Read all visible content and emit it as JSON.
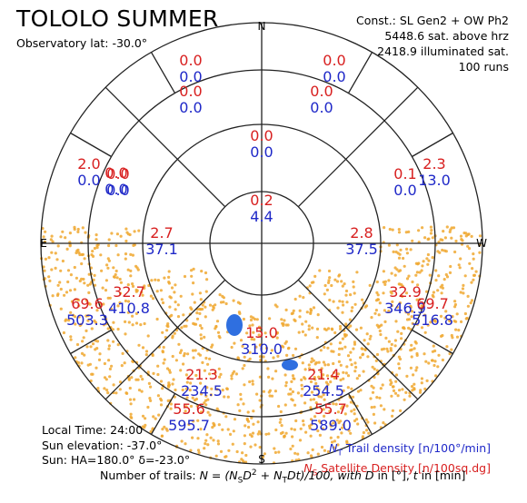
{
  "header": {
    "title": "TOLOLO SUMMER",
    "latitude": "Observatory lat: -30.0°"
  },
  "constellation": {
    "line1": "Const.: SL Gen2 + OW Ph2",
    "line2": "5448.6 sat. above hrz",
    "line3": "2418.9 illuminated sat.",
    "line4": "100 runs"
  },
  "cardinals": {
    "north": "N",
    "south": "S",
    "east": "E",
    "west": "W"
  },
  "sectors": [
    {
      "id": "zenith",
      "ns": "0.2",
      "nt": "4.4"
    },
    {
      "id": "r2-n",
      "ns": "0.0",
      "nt": "0.0"
    },
    {
      "id": "r2-nw",
      "ns": "0.1",
      "nt": "0.0"
    },
    {
      "id": "r2-ne",
      "ns": "0.0",
      "nt": "0.0"
    },
    {
      "id": "r2-sw",
      "ns": "2.8",
      "nt": "37.5"
    },
    {
      "id": "r2-se",
      "ns": "2.7",
      "nt": "37.1"
    },
    {
      "id": "r2-s",
      "ns": "15.0",
      "nt": "310.0"
    },
    {
      "id": "r3-nne",
      "ns": "0.0",
      "nt": "0.0"
    },
    {
      "id": "r3-nnw",
      "ns": "0.0",
      "nt": "0.0"
    },
    {
      "id": "r3-ne",
      "ns": "0.0",
      "nt": "0.0"
    },
    {
      "id": "r3-nw",
      "ns": "2.3",
      "nt": "13.0"
    },
    {
      "id": "r3-se",
      "ns": "32.7",
      "nt": "410.8"
    },
    {
      "id": "r3-sw",
      "ns": "32.9",
      "nt": "346.9"
    },
    {
      "id": "r3-sse",
      "ns": "21.3",
      "nt": "234.5"
    },
    {
      "id": "r3-ssw",
      "ns": "21.4",
      "nt": "254.5"
    },
    {
      "id": "r4-nne",
      "ns": "0.0",
      "nt": "0.0"
    },
    {
      "id": "r4-nnw",
      "ns": "0.0",
      "nt": "0.0"
    },
    {
      "id": "r4-ene",
      "ns": "2.0",
      "nt": "0.0"
    },
    {
      "id": "r4-ese",
      "ns": "69.6",
      "nt": "503.3"
    },
    {
      "id": "r4-wsw",
      "ns": "69.7",
      "nt": "516.8"
    },
    {
      "id": "r4-sse",
      "ns": "55.6",
      "nt": "595.7"
    },
    {
      "id": "r4-ssw",
      "ns": "55.7",
      "nt": "589.0"
    }
  ],
  "footer_left": {
    "local_time": "Local Time: 24:00",
    "sun_elevation": "Sun elevation: -37.0°",
    "sun_pos": "Sun: HA=180.0° δ=-23.0°"
  },
  "legend": {
    "nt_symbol": "N",
    "nt_sub": "T",
    "nt_text": " Trail density [n/100°/min]",
    "ns_symbol": "N",
    "ns_sub": "S",
    "ns_text": " Satellite Density [n/100sq.dg]"
  },
  "formula": {
    "prefix": "Number of trails: ",
    "equation": "N = (N",
    "s_sub": "S",
    "mid1": "D",
    "sq": "2",
    "mid2": " + N",
    "t_sub": "T",
    "mid3": "Dt)/100, with ",
    "d": "D",
    "mid4": " in [°], ",
    "t": "t",
    "mid5": " in [min]"
  },
  "colors": {
    "trail_blue": "#1f28c8",
    "density_red": "#d82020",
    "satellite_orange": "#f0a830",
    "illuminated_blob": "#2f6fe0"
  }
}
